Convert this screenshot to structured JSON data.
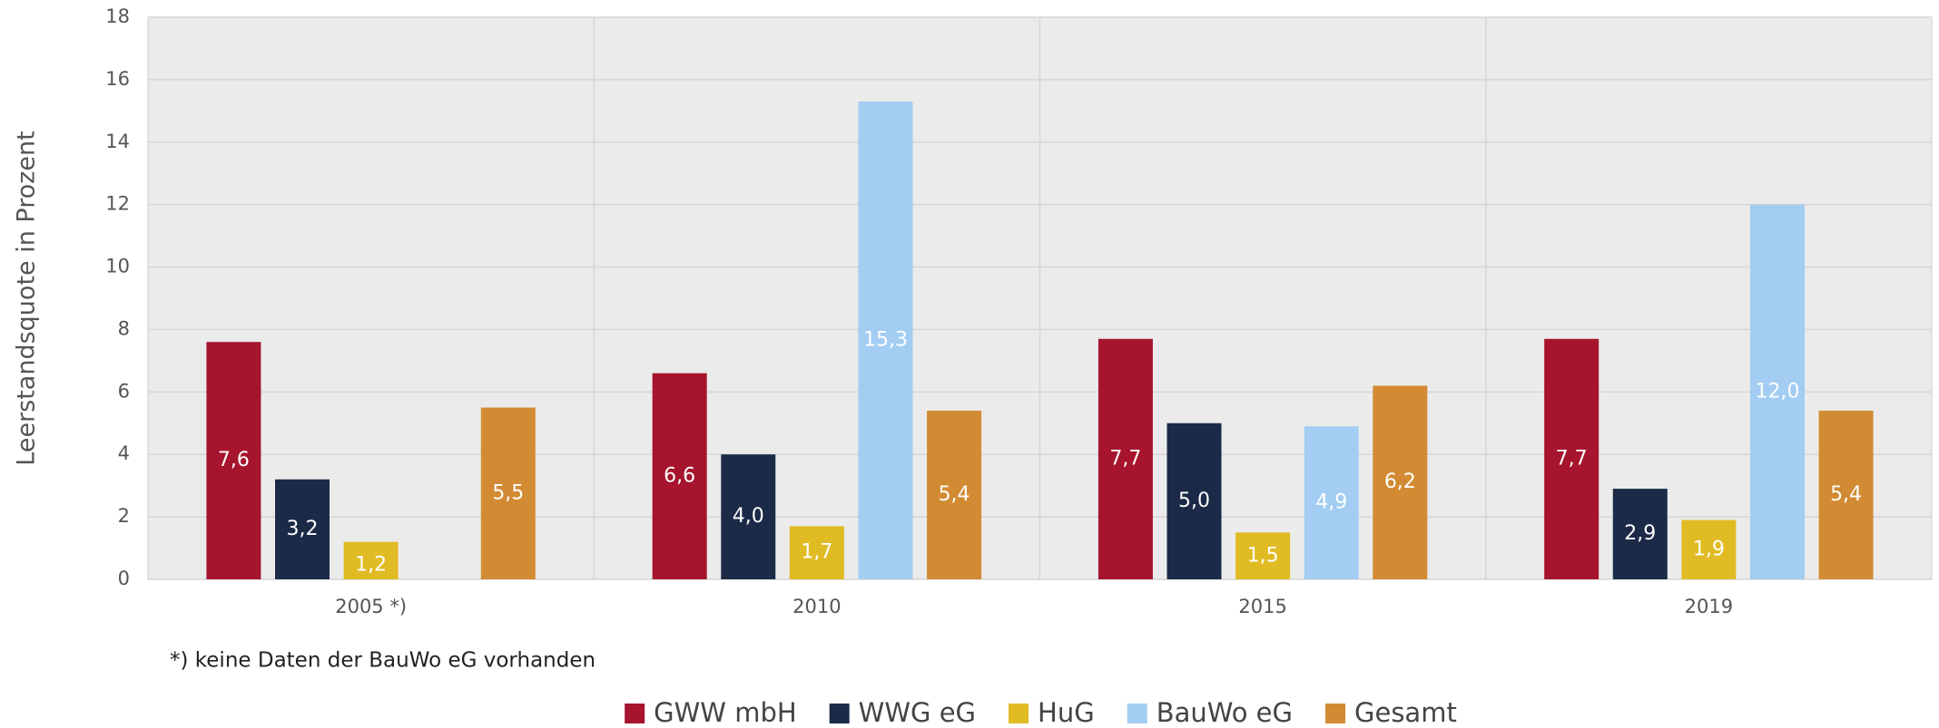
{
  "chart_data": {
    "type": "bar",
    "y_label": "Leerstandsquote in Prozent",
    "footnote": "*) keine Daten der BauWo eG vorhanden",
    "categories": [
      "2005 *)",
      "2010",
      "2015",
      "2019"
    ],
    "series": [
      {
        "name": "GWW mbH",
        "color": "#a6142d",
        "values": [
          7.6,
          6.6,
          7.7,
          7.7
        ],
        "value_labels": [
          "7,6",
          "6,6",
          "7,7",
          "7,7"
        ]
      },
      {
        "name": "WWG eG",
        "color": "#1b2a47",
        "values": [
          3.2,
          4.0,
          5.0,
          2.9
        ],
        "value_labels": [
          "3,2",
          "4,0",
          "5,0",
          "2,9"
        ]
      },
      {
        "name": "HuG",
        "color": "#e0bb24",
        "values": [
          1.2,
          1.7,
          1.5,
          1.9
        ],
        "value_labels": [
          "1,2",
          "1,7",
          "1,5",
          "1,9"
        ]
      },
      {
        "name": "BauWo eG",
        "color": "#a3cdf2",
        "values": [
          null,
          15.3,
          4.9,
          12.0
        ],
        "value_labels": [
          null,
          "15,3",
          "4,9",
          "12,0"
        ]
      },
      {
        "name": "Gesamt",
        "color": "#d38b33",
        "values": [
          5.5,
          5.4,
          6.2,
          5.4
        ],
        "value_labels": [
          "5,5",
          "5,4",
          "6,2",
          "5,4"
        ]
      }
    ],
    "ylim": [
      0,
      18
    ],
    "yticks": [
      0,
      2,
      4,
      6,
      8,
      10,
      12,
      14,
      16,
      18
    ],
    "grid": true
  }
}
